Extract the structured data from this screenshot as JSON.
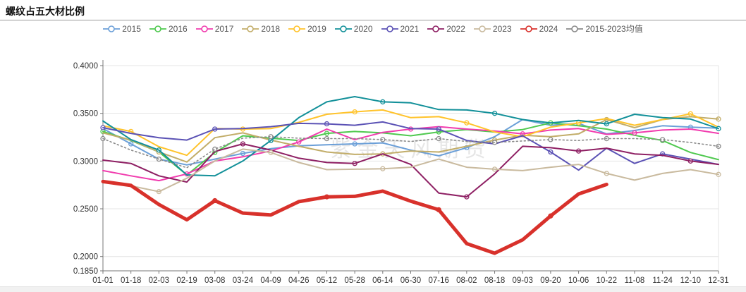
{
  "title": "螺纹占五大材比例",
  "watermark": "紫金天风期货",
  "chart_data": {
    "type": "line",
    "categories": [
      "01-01",
      "01-18",
      "02-03",
      "02-19",
      "03-08",
      "03-24",
      "04-09",
      "04-26",
      "05-12",
      "05-28",
      "06-14",
      "06-30",
      "07-16",
      "08-02",
      "08-18",
      "09-03",
      "09-20",
      "10-06",
      "10-22",
      "11-08",
      "11-24",
      "12-10",
      "12-31"
    ],
    "xlabel": "",
    "ylabel": "",
    "ylim": [
      0.185,
      0.4
    ],
    "y_ticks": [
      0.185,
      0.2,
      0.25,
      0.3,
      0.35,
      0.4
    ],
    "grid_values": [
      0.2,
      0.25,
      0.3,
      0.35,
      0.4
    ],
    "grid": "horizontal",
    "legend_position": "top",
    "series": [
      {
        "name": "2015",
        "color": "#6B9FD8",
        "width": 2,
        "marker_every": 4,
        "marker_offset": 1,
        "values": [
          0.334,
          0.318,
          0.302,
          0.296,
          0.302,
          0.308,
          0.313,
          0.316,
          0.317,
          0.318,
          0.319,
          0.3115,
          0.3055,
          0.314,
          0.3255,
          0.3435,
          0.3375,
          0.3395,
          0.3285,
          0.332,
          0.337,
          0.3355,
          0.3345
        ]
      },
      {
        "name": "2016",
        "color": "#4FC94F",
        "width": 2,
        "marker_every": 4,
        "marker_offset": 0,
        "values": [
          0.331,
          0.3215,
          0.3095,
          0.2855,
          0.309,
          0.3265,
          0.324,
          0.3215,
          0.329,
          0.331,
          0.3295,
          0.3265,
          0.3305,
          0.333,
          0.3305,
          0.333,
          0.34,
          0.337,
          0.3335,
          0.327,
          0.3215,
          0.309,
          0.3015
        ]
      },
      {
        "name": "2017",
        "color": "#F13BAE",
        "width": 2,
        "marker_every": 4,
        "marker_offset": 3,
        "values": [
          0.29,
          0.2845,
          0.2795,
          0.2865,
          0.3,
          0.3045,
          0.3105,
          0.32,
          0.3335,
          0.3225,
          0.33,
          0.3335,
          0.336,
          0.3335,
          0.3315,
          0.3285,
          0.3325,
          0.334,
          0.328,
          0.3295,
          0.3325,
          0.3335,
          0.329
        ]
      },
      {
        "name": "2018",
        "color": "#C2AD69",
        "width": 2,
        "marker_every": 4,
        "marker_offset": 2,
        "values": [
          0.3295,
          0.322,
          0.3095,
          0.299,
          0.3245,
          0.3295,
          0.322,
          0.3155,
          0.3095,
          0.307,
          0.3075,
          0.3105,
          0.3095,
          0.3155,
          0.322,
          0.327,
          0.3255,
          0.3285,
          0.3435,
          0.335,
          0.3435,
          0.3465,
          0.344
        ]
      },
      {
        "name": "2019",
        "color": "#FFC32B",
        "width": 2,
        "marker_every": 4,
        "marker_offset": 1,
        "values": [
          0.337,
          0.331,
          0.315,
          0.306,
          0.334,
          0.3335,
          0.334,
          0.3405,
          0.349,
          0.3515,
          0.3535,
          0.3455,
          0.3465,
          0.34,
          0.3305,
          0.3255,
          0.3355,
          0.34,
          0.3445,
          0.3375,
          0.3435,
          0.3495,
          0.3355
        ]
      },
      {
        "name": "2020",
        "color": "#129099",
        "width": 2,
        "marker_every": 4,
        "marker_offset": 2,
        "values": [
          0.342,
          0.3225,
          0.3115,
          0.2855,
          0.2845,
          0.3,
          0.3215,
          0.3455,
          0.362,
          0.3675,
          0.362,
          0.361,
          0.354,
          0.3535,
          0.35,
          0.3435,
          0.34,
          0.3425,
          0.339,
          0.349,
          0.3455,
          0.344,
          0.334
        ]
      },
      {
        "name": "2021",
        "color": "#5B52B5",
        "width": 2,
        "marker_every": 4,
        "marker_offset": 0,
        "values": [
          0.335,
          0.329,
          0.3245,
          0.322,
          0.3335,
          0.334,
          0.336,
          0.3395,
          0.339,
          0.3375,
          0.341,
          0.334,
          0.3335,
          0.3215,
          0.318,
          0.3265,
          0.3095,
          0.2905,
          0.3135,
          0.2975,
          0.3075,
          0.302,
          0.2965
        ]
      },
      {
        "name": "2022",
        "color": "#8E1F63",
        "width": 2,
        "marker_every": 4,
        "marker_offset": 5,
        "values": [
          0.301,
          0.2975,
          0.2845,
          0.278,
          0.31,
          0.318,
          0.3115,
          0.303,
          0.2985,
          0.2975,
          0.3075,
          0.2965,
          0.2665,
          0.2625,
          0.2865,
          0.3155,
          0.314,
          0.3105,
          0.3135,
          0.3075,
          0.306,
          0.3,
          0.2965
        ]
      },
      {
        "name": "2023",
        "color": "#C9BA9E",
        "width": 2,
        "marker_every": 4,
        "marker_offset": 2,
        "values": [
          0.278,
          0.274,
          0.268,
          0.282,
          0.3,
          0.3125,
          0.309,
          0.2985,
          0.291,
          0.2915,
          0.292,
          0.2935,
          0.302,
          0.2935,
          0.2915,
          0.29,
          0.2935,
          0.2965,
          0.287,
          0.28,
          0.287,
          0.291,
          0.286
        ]
      },
      {
        "name": "2024",
        "color": "#D8312B",
        "width": 5,
        "marker_every": 4,
        "marker_offset": 4,
        "values": [
          0.2785,
          0.2745,
          0.2545,
          0.2385,
          0.2585,
          0.2455,
          0.2435,
          0.2575,
          0.2625,
          0.263,
          0.2685,
          0.258,
          0.249,
          0.2135,
          0.2035,
          0.2175,
          0.2425,
          0.2655,
          0.2755,
          null,
          null,
          null,
          null
        ]
      },
      {
        "name": "2015-2023均值",
        "color": "#8A8A8A",
        "width": 1.6,
        "dash": "2 3.5",
        "marker_every": 2,
        "marker_offset": 0,
        "values": [
          0.3235,
          0.3115,
          0.302,
          0.293,
          0.3125,
          0.324,
          0.3255,
          0.324,
          0.3235,
          0.3235,
          0.3225,
          0.3205,
          0.3235,
          0.3205,
          0.3195,
          0.321,
          0.3225,
          0.3215,
          0.3235,
          0.3235,
          0.3225,
          0.3195,
          0.3155
        ]
      }
    ]
  }
}
